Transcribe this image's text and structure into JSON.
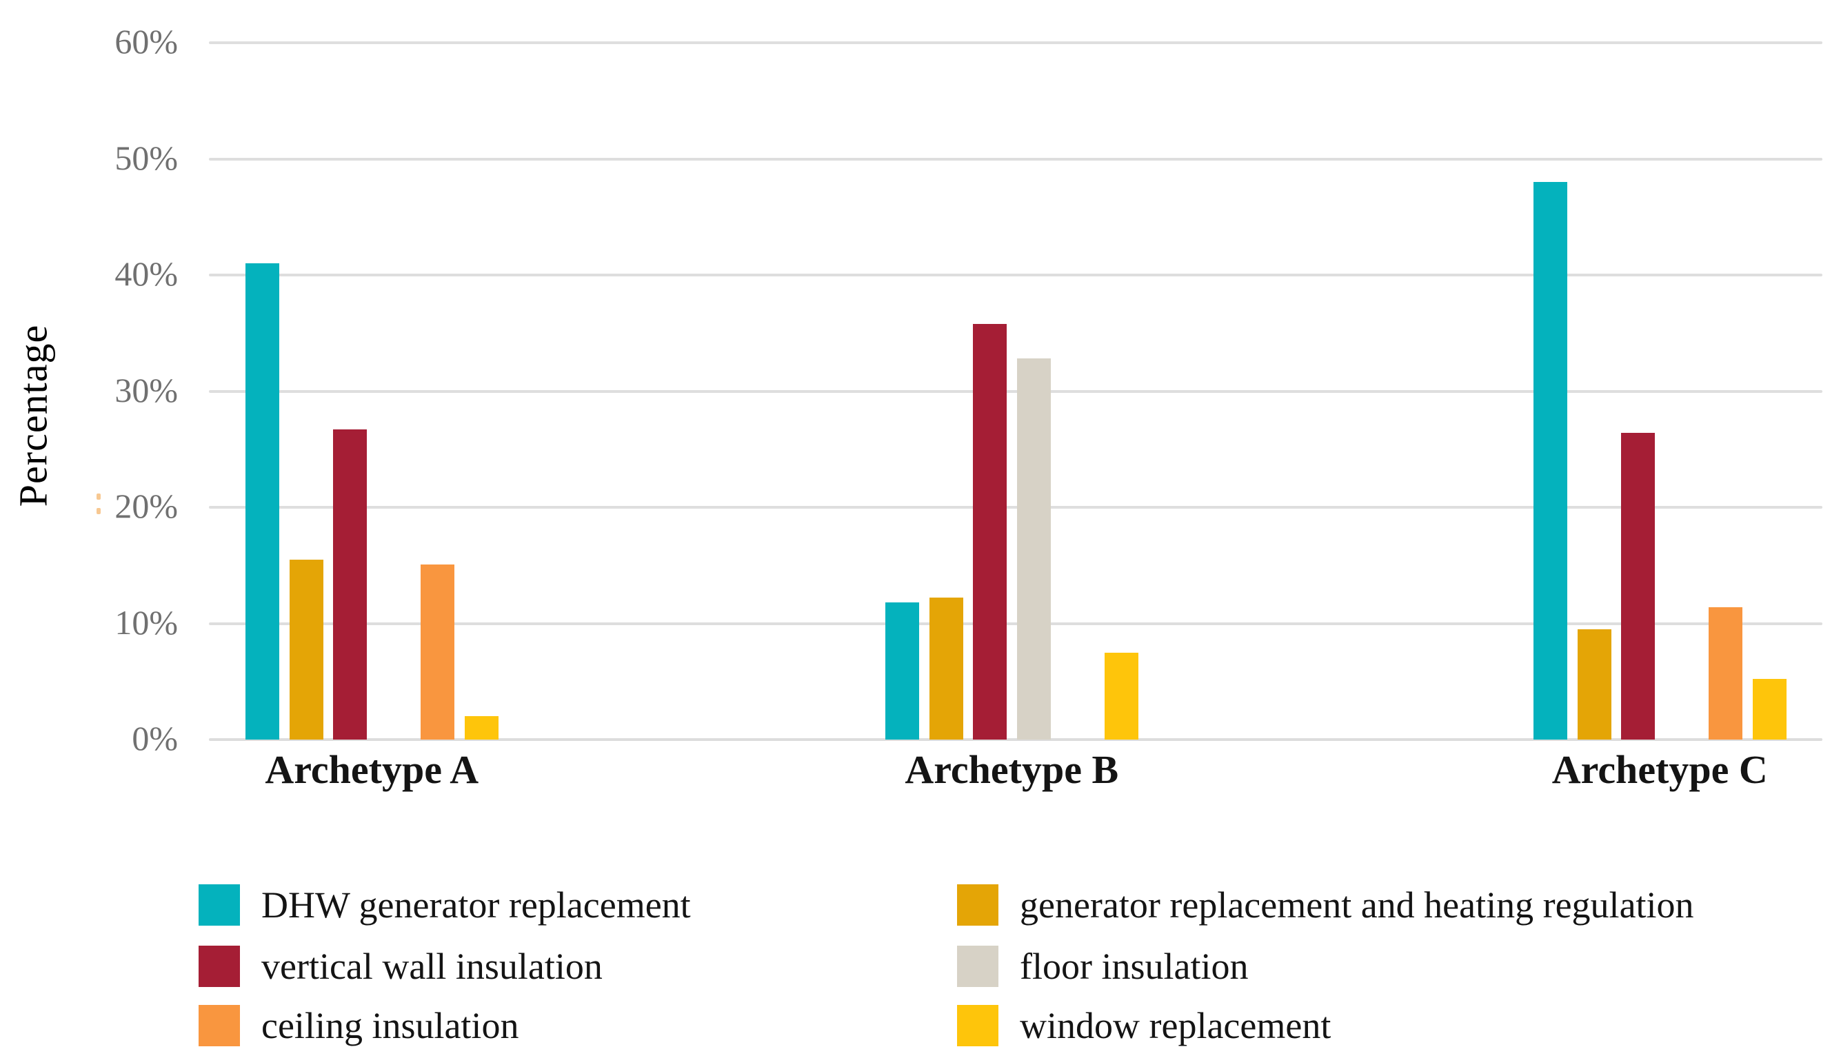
{
  "chart_data": {
    "type": "bar",
    "title": "",
    "xlabel": "",
    "ylabel": "Percentage",
    "categories": [
      "Archetype A",
      "Archetype B",
      "Archetype C"
    ],
    "series": [
      {
        "name": "DHW generator replacement",
        "color": "#04B2BD",
        "values": [
          41.0,
          11.8,
          48.0
        ]
      },
      {
        "name": "generator replacement and heating regulation",
        "color": "#E4A506",
        "values": [
          15.5,
          12.2,
          9.5
        ]
      },
      {
        "name": "vertical wall insulation",
        "color": "#A51E35",
        "values": [
          26.7,
          35.8,
          26.4
        ]
      },
      {
        "name": "floor insulation",
        "color": "#D7D2C6",
        "values": [
          0,
          32.8,
          0
        ]
      },
      {
        "name": "ceiling insulation",
        "color": "#F9963F",
        "values": [
          15.1,
          0,
          11.4
        ]
      },
      {
        "name": "window replacement",
        "color": "#FEC50B",
        "values": [
          2.0,
          7.5,
          5.2
        ]
      }
    ],
    "y_ticks": [
      "0%",
      "10%",
      "20%",
      "30%",
      "40%",
      "50%",
      "60%"
    ],
    "ylim": [
      0,
      60
    ],
    "grid": true,
    "legend_position": "bottom",
    "legend_columns": [
      [
        0,
        2,
        4
      ],
      [
        1,
        3,
        5
      ]
    ]
  },
  "colors": {
    "gridline": "#DEDEDE",
    "baseline": "#DCDCDC",
    "tick_text": "#707070",
    "label_text": "#141414",
    "stray_mark": "#F5B265"
  }
}
